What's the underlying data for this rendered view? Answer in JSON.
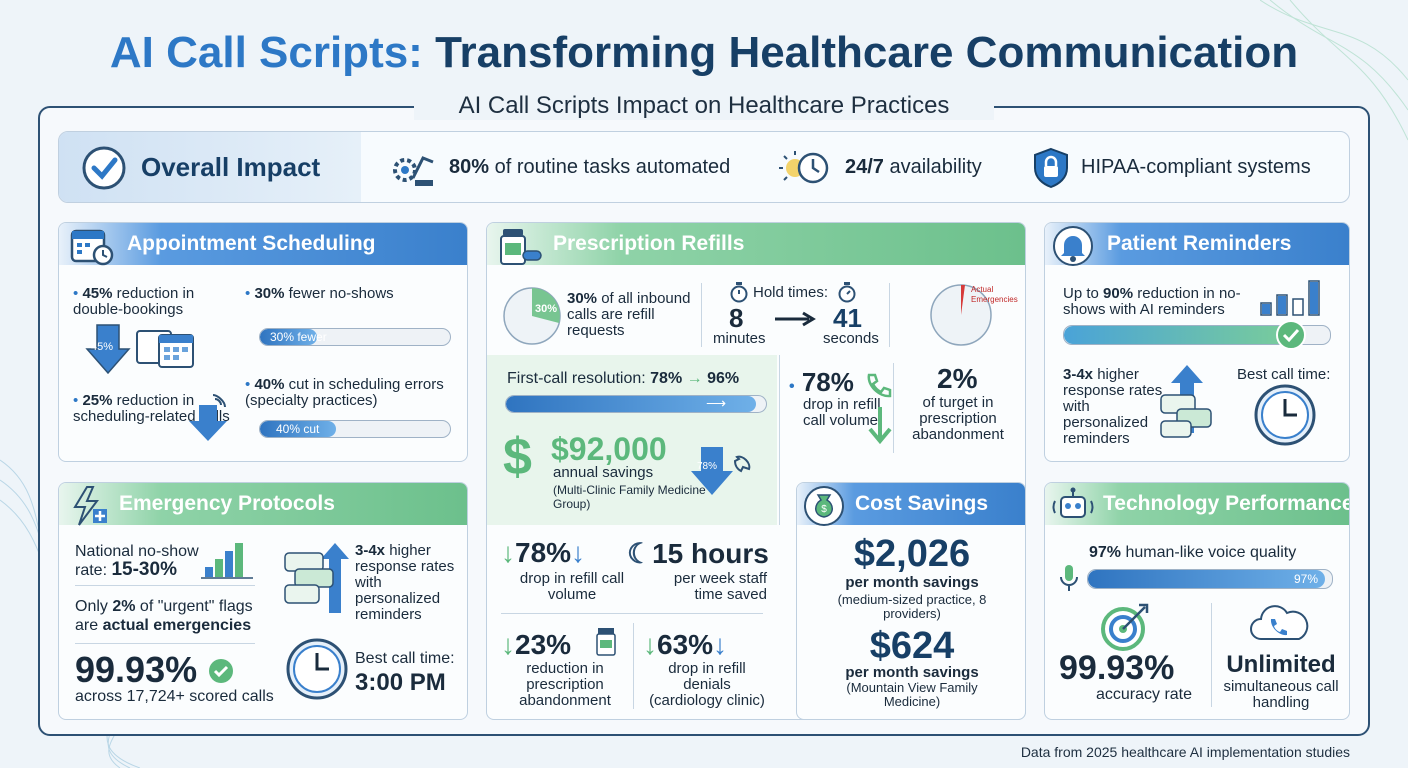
{
  "header": {
    "title_accent": "AI Call Scripts:",
    "title_rest": " Transforming Healthcare Communication",
    "subtitle": "AI Call Scripts Impact on Healthcare Practices"
  },
  "overall": {
    "title": "Overall Impact",
    "items": [
      {
        "bold": "80%",
        "text": " of routine tasks automated"
      },
      {
        "bold": "24/7",
        "text": " availability"
      },
      {
        "bold": "",
        "text": "HIPAA-compliant systems"
      }
    ]
  },
  "appointment": {
    "title": "Appointment Scheduling",
    "s1_bold": "45%",
    "s1_text": " reduction in double-bookings",
    "s1_badge": "45%",
    "s2_bold": "30%",
    "s2_text": " fewer no-shows",
    "s2_bar": "30% fewer",
    "s2_level": 0.3,
    "s3_bold": "25%",
    "s3_text": " reduction in scheduling-related calls",
    "s4_bold": "40%",
    "s4_text": " cut in scheduling errors (specialty practices)",
    "s4_bar": "40% cut",
    "s4_level": 0.4
  },
  "prescription": {
    "title": "Prescription Refills",
    "pie_label": "30%",
    "p1_bold": "30%",
    "p1_text": " of all inbound calls are refill requests",
    "hold_label": "Hold times:",
    "hold_from": "8",
    "hold_from_unit": "minutes",
    "hold_to": "41",
    "hold_to_unit": "seconds",
    "pie2_label": "Actual Emergencies",
    "fcr_label": "First-call resolution:",
    "fcr_from": "78%",
    "fcr_to": "96%",
    "fcr_level": 0.96,
    "savings_value": "$92,000",
    "savings_text": "annual savings",
    "savings_note": "(Multi-Clinic Family Medicine Group)",
    "savings_arrow": "78%",
    "r1_value": "78%",
    "r1_text": "drop in refill call volume",
    "r2_value": "2%",
    "r2_text": "of turget in prescription abandonment",
    "b1_value": "78%",
    "b1_text": "drop in refill call volume",
    "b2_value": "15 hours",
    "b2_text": "per week staff time saved",
    "b3_value": "23%",
    "b3_text": "reduction in prescription abandonment",
    "b4_value": "63%",
    "b4_text": "drop in refill denials (cardiology clinic)"
  },
  "reminders": {
    "title": "Patient Reminders",
    "s1_pre": "Up to ",
    "s1_bold": "90%",
    "s1_text": " reduction in no-shows with AI reminders",
    "s1_level": 0.9,
    "s2_bold": "3-4x",
    "s2_text": " higher response rates with personalized reminders",
    "best_label": "Best call time:"
  },
  "emergency": {
    "title": "Emergency Protocols",
    "n1_text": "National no-show rate: ",
    "n1_bold": "15-30%",
    "n2_pre": "Only ",
    "n2_bold": "2%",
    "n2_mid": " of \"urgent\" flags are ",
    "n2_bold2": "actual emergencies",
    "acc_value": "99.93%",
    "acc_text": "across 17,724+ scored calls",
    "r_bold": "3-4x",
    "r_text": " higher response rates with personalized reminders",
    "best_label": "Best call time:",
    "best_value": "3:00 PM"
  },
  "cost": {
    "title": "Cost Savings",
    "v1": "$2,026",
    "v1_label": "per month savings",
    "v1_note": "(medium-sized practice, 8 providers)",
    "v2": "$624",
    "v2_label": "per month savings",
    "v2_note": "(Mountain View Family Medicine)"
  },
  "tech": {
    "title": "Technology Performance",
    "voice_bold": "97%",
    "voice_text": " human-like voice quality",
    "voice_bar": "97%",
    "voice_level": 0.97,
    "acc_value": "99.93%",
    "acc_text": "accuracy rate",
    "unl_value": "Unlimited",
    "unl_text": "simultaneous call handling"
  },
  "footer": "Data from 2025 healthcare AI implementation studies",
  "colors": {
    "navy": "#173f66",
    "blue": "#2d78c6",
    "green": "#5cb87c"
  }
}
